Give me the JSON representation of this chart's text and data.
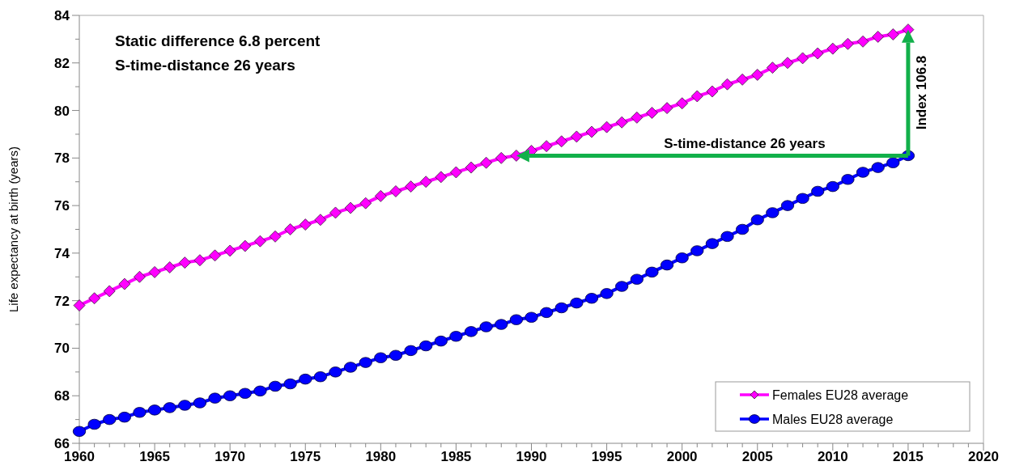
{
  "chart_data": {
    "type": "line",
    "ylabel": "Life expectancy at birth (years)",
    "annotations": [
      "Static difference 6.8 percent",
      "S-time-distance 26 years",
      {
        "text": "Index 106.8",
        "x": 2015,
        "y": 83.4
      },
      "S-time-distance 26 years"
    ],
    "x": [
      1960,
      1961,
      1962,
      1963,
      1964,
      1965,
      1966,
      1967,
      1968,
      1969,
      1970,
      1971,
      1972,
      1973,
      1974,
      1975,
      1976,
      1977,
      1978,
      1979,
      1980,
      1981,
      1982,
      1983,
      1984,
      1985,
      1986,
      1987,
      1988,
      1989,
      1990,
      1991,
      1992,
      1993,
      1994,
      1995,
      1996,
      1997,
      1998,
      1999,
      2000,
      2001,
      2002,
      2003,
      2004,
      2005,
      2006,
      2007,
      2008,
      2009,
      2010,
      2011,
      2012,
      2013,
      2014,
      2015
    ],
    "series": [
      {
        "name": "Females EU28 average",
        "color": "#ff00ff",
        "marker": "diamond",
        "values": [
          71.8,
          72.1,
          72.4,
          72.7,
          73.0,
          73.2,
          73.4,
          73.6,
          73.7,
          73.9,
          74.1,
          74.3,
          74.5,
          74.7,
          75.0,
          75.2,
          75.4,
          75.7,
          75.9,
          76.1,
          76.4,
          76.6,
          76.8,
          77.0,
          77.2,
          77.4,
          77.6,
          77.8,
          78.0,
          78.1,
          78.3,
          78.5,
          78.7,
          78.9,
          79.1,
          79.3,
          79.5,
          79.7,
          79.9,
          80.1,
          80.3,
          80.6,
          80.8,
          81.1,
          81.3,
          81.5,
          81.8,
          82.0,
          82.2,
          82.4,
          82.6,
          82.8,
          82.9,
          83.1,
          83.2,
          83.4
        ]
      },
      {
        "name": "Males EU28 average",
        "color": "#0000ff",
        "marker": "circle",
        "values": [
          66.5,
          66.8,
          67.0,
          67.1,
          67.3,
          67.4,
          67.5,
          67.6,
          67.7,
          67.9,
          68.0,
          68.1,
          68.2,
          68.4,
          68.5,
          68.7,
          68.8,
          69.0,
          69.2,
          69.4,
          69.6,
          69.7,
          69.9,
          70.1,
          70.3,
          70.5,
          70.7,
          70.9,
          71.0,
          71.2,
          71.3,
          71.5,
          71.7,
          71.9,
          72.1,
          72.3,
          72.6,
          72.9,
          73.2,
          73.5,
          73.8,
          74.1,
          74.4,
          74.7,
          75.0,
          75.4,
          75.7,
          76.0,
          76.3,
          76.6,
          76.8,
          77.1,
          77.4,
          77.6,
          77.8,
          78.1
        ]
      }
    ],
    "xlim": [
      1960,
      2020
    ],
    "xticks": [
      1960,
      {
        "value": 1961,
        "label": null
      },
      {
        "value": 1962,
        "label": null
      },
      {
        "value": 1963,
        "label": null
      },
      {
        "value": 1964,
        "label": null
      },
      1965,
      {
        "value": 1966,
        "label": null
      },
      {
        "value": 1967,
        "label": null
      },
      {
        "value": 1968,
        "label": null
      },
      {
        "value": 1969,
        "label": null
      },
      1970,
      {
        "value": 1971,
        "label": null
      },
      {
        "value": 1972,
        "label": null
      },
      {
        "value": 1973,
        "label": null
      },
      {
        "value": 1974,
        "label": null
      },
      1975,
      {
        "value": 1976,
        "label": null
      },
      {
        "value": 1977,
        "label": null
      },
      {
        "value": 1978,
        "label": null
      },
      {
        "value": 1979,
        "label": null
      },
      1980,
      {
        "value": 1981,
        "label": null
      },
      {
        "value": 1982,
        "label": null
      },
      {
        "value": 1983,
        "label": null
      },
      {
        "value": 1984,
        "label": null
      },
      1985,
      {
        "value": 1986,
        "label": null
      },
      {
        "value": 1987,
        "label": null
      },
      {
        "value": 1988,
        "label": null
      },
      {
        "value": 1989,
        "label": null
      },
      1990,
      {
        "value": 1991,
        "label": null
      },
      {
        "value": 1992,
        "label": null
      },
      {
        "value": 1993,
        "label": null
      },
      {
        "value": 1994,
        "label": null
      },
      1995,
      {
        "value": 1996,
        "label": null
      },
      {
        "value": 1997,
        "label": null
      },
      {
        "value": 1998,
        "label": null
      },
      {
        "value": 1999,
        "label": null
      },
      2000,
      {
        "value": 2001,
        "label": null
      },
      {
        "value": 2002,
        "label": null
      },
      {
        "value": 2003,
        "label": null
      },
      {
        "value": 2004,
        "label": null
      },
      2005,
      {
        "value": 2006,
        "label": null
      },
      {
        "value": 2007,
        "label": null
      },
      {
        "value": 2008,
        "label": null
      },
      {
        "value": 2009,
        "label": null
      },
      2010,
      {
        "value": 2011,
        "label": null
      },
      {
        "value": 2012,
        "label": null
      },
      {
        "value": 2013,
        "label": null
      },
      {
        "value": 2014,
        "label": null
      },
      2015,
      {
        "value": 2016,
        "label": null
      },
      {
        "value": 2017,
        "label": null
      },
      {
        "value": 2018,
        "label": null
      },
      {
        "value": 2019,
        "label": null
      },
      2020
    ],
    "ylim": [
      66,
      84
    ],
    "yticks": [
      66,
      {
        "value": 67,
        "label": null
      },
      68,
      {
        "value": 69,
        "label": null
      },
      70,
      {
        "value": 71,
        "label": null
      },
      72,
      {
        "value": 73,
        "label": null
      },
      74,
      {
        "value": 75,
        "label": null
      },
      76,
      {
        "value": 77,
        "label": null
      },
      78,
      {
        "value": 79,
        "label": null
      },
      80,
      {
        "value": 81,
        "label": null
      },
      82,
      {
        "value": 83,
        "label": null
      },
      84
    ],
    "grid": false,
    "legend": "bottom right",
    "line_style": "solid"
  }
}
